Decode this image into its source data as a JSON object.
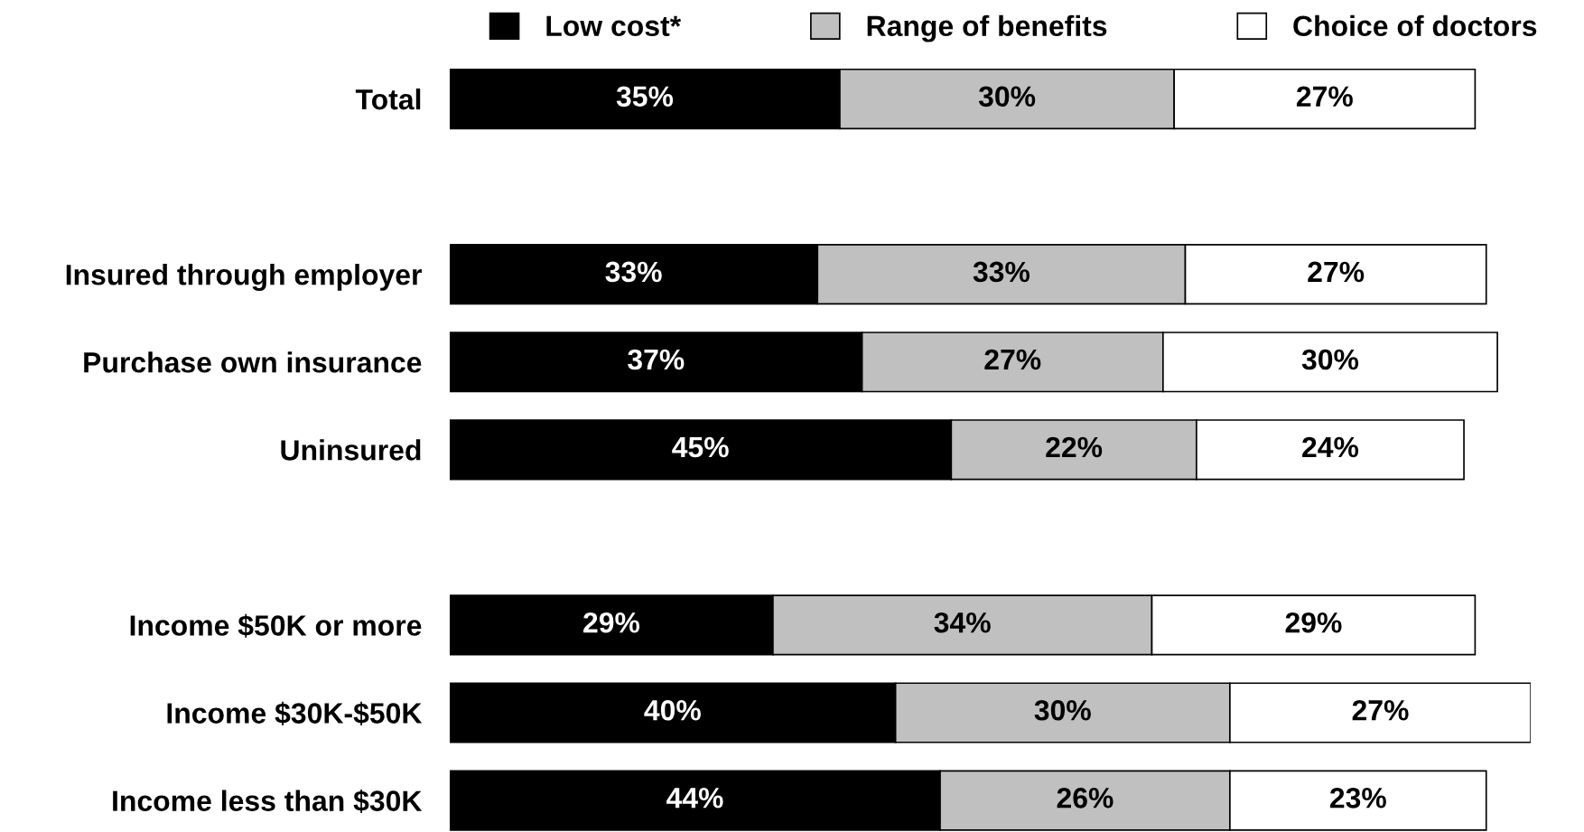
{
  "chart_data": {
    "type": "bar",
    "orientation": "horizontal",
    "stacked": true,
    "legend": "top",
    "categories": [
      "Total",
      null,
      "Insured through employer",
      "Purchase own insurance",
      "Uninsured",
      null,
      "Income $50K or more",
      "Income $30K-$50K",
      "Income less than $30K"
    ],
    "series": [
      {
        "name": "Low cost*",
        "color": "#000000",
        "values": [
          35,
          null,
          33,
          37,
          45,
          null,
          29,
          40,
          44
        ],
        "value_labels": [
          "35%",
          null,
          "33%",
          "37%",
          "45%",
          null,
          "29%",
          "40%",
          "44%"
        ]
      },
      {
        "name": "Range of benefits",
        "color": "#c0c0c0",
        "values": [
          30,
          null,
          33,
          27,
          22,
          null,
          34,
          30,
          26
        ],
        "value_labels": [
          "30%",
          null,
          "33%",
          "27%",
          "22%",
          null,
          "34%",
          "30%",
          "26%"
        ]
      },
      {
        "name": "Choice of doctors",
        "color": "#ffffff",
        "values": [
          27,
          null,
          27,
          30,
          24,
          null,
          29,
          27,
          23
        ],
        "value_labels": [
          "27%",
          null,
          "27%",
          "30%",
          "24%",
          null,
          "29%",
          "27%",
          "23%"
        ]
      }
    ]
  }
}
